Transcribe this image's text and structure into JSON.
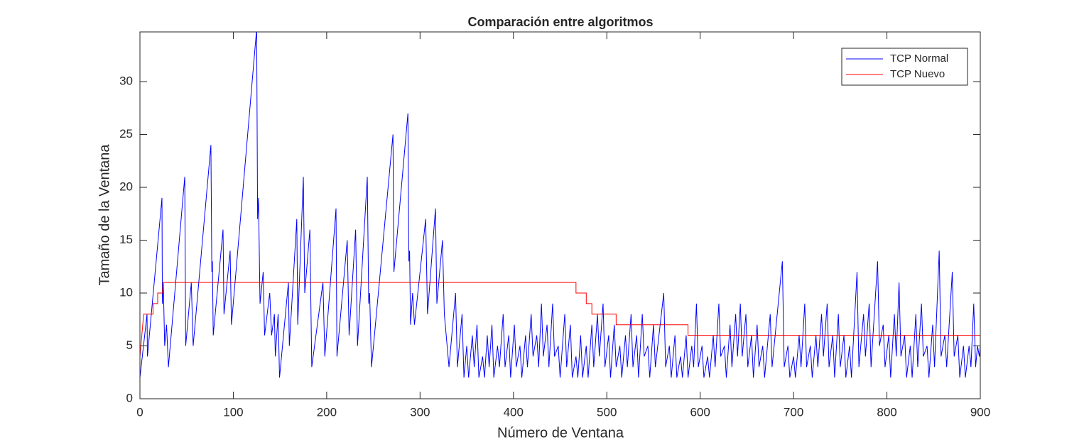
{
  "chart_data": {
    "type": "line",
    "title": "Comparación entre algoritmos",
    "x_label": "Número de Ventana",
    "y_label": "Tamaño de la Ventana",
    "xlim": [
      0,
      900
    ],
    "xticks": [
      0,
      100,
      200,
      300,
      400,
      500,
      600,
      700,
      800,
      900
    ],
    "ylim": [
      0,
      34.7
    ],
    "yticks": [
      0,
      5,
      10,
      15,
      20,
      25,
      30
    ],
    "grid": false,
    "legend": "northeast",
    "series": [
      {
        "name": "TCP Normal",
        "color": "#0000ff",
        "x": [
          0,
          7.6,
          8,
          23.6,
          24,
          25,
          26.5,
          28.5,
          30.5,
          48,
          49,
          55,
          57,
          76,
          77,
          77.6,
          78.5,
          89,
          90,
          96.6,
          98,
          125,
          126,
          127,
          128.6,
          132,
          133.5,
          139,
          141,
          144,
          145,
          148,
          149.5,
          159,
          160,
          168,
          169,
          175,
          176.5,
          182,
          184,
          196,
          198,
          210,
          211,
          222,
          224,
          231,
          233,
          243.5,
          245,
          246,
          248,
          271,
          272,
          287,
          288,
          288.8,
          289.8,
          292,
          294,
          306,
          308,
          316.5,
          318,
          324,
          326,
          331,
          338,
          340,
          345,
          347,
          350,
          352,
          356,
          358,
          361,
          363,
          367,
          369,
          372,
          374,
          377,
          379,
          383,
          385,
          389,
          391,
          395,
          397,
          401,
          403,
          407,
          409,
          413,
          415,
          419,
          421,
          425,
          427,
          430,
          432,
          436,
          438,
          442,
          444,
          448,
          450,
          455,
          457,
          461,
          463,
          467,
          469,
          472,
          474,
          478,
          480,
          484,
          486,
          490,
          492,
          496,
          498,
          502,
          504,
          508,
          510,
          514,
          516,
          520,
          522,
          526,
          528,
          532,
          534,
          538,
          540,
          544,
          546,
          550,
          552,
          561,
          563,
          567,
          569,
          573,
          575,
          579,
          581,
          585,
          587,
          591,
          593,
          596,
          598,
          602,
          604,
          608,
          610,
          614,
          616,
          620,
          622,
          626,
          628,
          632,
          634,
          638,
          640,
          643,
          645,
          649,
          651,
          655,
          657,
          661,
          663,
          667,
          669,
          675,
          677,
          688,
          690,
          694,
          696,
          700,
          702,
          706,
          708,
          712,
          714,
          718,
          720,
          724,
          726,
          730,
          732,
          736,
          738,
          742,
          744,
          748,
          750,
          754,
          756,
          760,
          762,
          768,
          770,
          775,
          777,
          781,
          783,
          790,
          792,
          796,
          798,
          802,
          804,
          808,
          810,
          813,
          815,
          819,
          821,
          825,
          827,
          831,
          833,
          837,
          839,
          843,
          845,
          849,
          851,
          856,
          858,
          862,
          864,
          870,
          872,
          876,
          878,
          882,
          884,
          888,
          890,
          893,
          895,
          897,
          899,
          900
        ],
        "values": [
          2,
          8,
          4,
          19,
          9,
          11,
          5,
          7,
          3,
          21,
          5,
          11,
          5,
          24,
          12,
          13,
          6,
          16,
          8,
          14,
          7,
          35,
          17,
          19,
          9,
          12,
          6,
          10,
          6,
          8,
          4,
          8,
          2,
          11,
          5,
          17,
          7,
          21,
          10,
          16,
          3,
          11,
          4,
          18,
          4,
          15,
          6,
          16,
          5,
          21,
          9,
          10,
          3,
          25,
          12,
          27,
          13,
          14,
          7,
          10,
          7,
          17,
          8,
          18,
          9,
          15,
          8,
          3,
          10,
          3,
          8,
          2,
          5,
          2,
          6,
          3,
          7,
          2,
          4,
          2,
          6,
          3,
          7,
          2,
          5,
          3,
          8,
          3,
          6,
          2,
          7,
          3,
          5,
          2,
          6,
          3,
          8,
          4,
          6,
          3,
          9,
          4,
          7,
          3,
          9,
          4,
          5,
          2,
          8,
          3,
          7,
          2,
          4,
          2,
          6,
          2,
          5,
          2,
          7,
          3,
          8,
          4,
          9,
          3,
          6,
          2,
          7,
          3,
          5,
          2,
          6,
          3,
          8,
          3,
          6,
          2,
          8,
          4,
          5,
          2,
          7,
          3,
          10,
          3,
          5,
          2,
          6,
          2,
          4,
          2,
          6,
          2,
          5,
          3,
          9,
          3,
          5,
          2,
          4,
          2,
          6,
          3,
          9,
          4,
          5,
          2,
          7,
          3,
          8,
          4,
          9,
          4,
          8,
          3,
          6,
          2,
          7,
          3,
          5,
          2,
          8,
          3,
          13,
          3,
          5,
          2,
          4,
          2,
          6,
          3,
          9,
          3,
          5,
          2,
          6,
          3,
          8,
          4,
          9,
          3,
          6,
          2,
          8,
          3,
          6,
          2,
          5,
          2,
          12,
          3,
          8,
          4,
          9,
          3,
          13,
          5,
          7,
          3,
          6,
          2,
          8,
          4,
          11,
          4,
          6,
          2,
          5,
          2,
          8,
          3,
          9,
          4,
          5,
          2,
          7,
          3,
          14,
          4,
          6,
          3,
          12,
          4,
          6,
          2,
          5,
          2,
          5,
          3,
          9,
          3,
          5,
          4,
          5
        ]
      },
      {
        "name": "TCP Nuevo",
        "color": "#ff0000",
        "x": [
          0,
          4,
          14,
          14,
          19,
          19,
          24,
          25,
          467,
          467,
          478,
          478,
          484,
          484,
          510,
          510,
          587,
          587,
          900
        ],
        "values": [
          4,
          8,
          8,
          9,
          9,
          10,
          10,
          11,
          11,
          10,
          10,
          9,
          9,
          8,
          8,
          7,
          7,
          6,
          6
        ]
      }
    ]
  }
}
